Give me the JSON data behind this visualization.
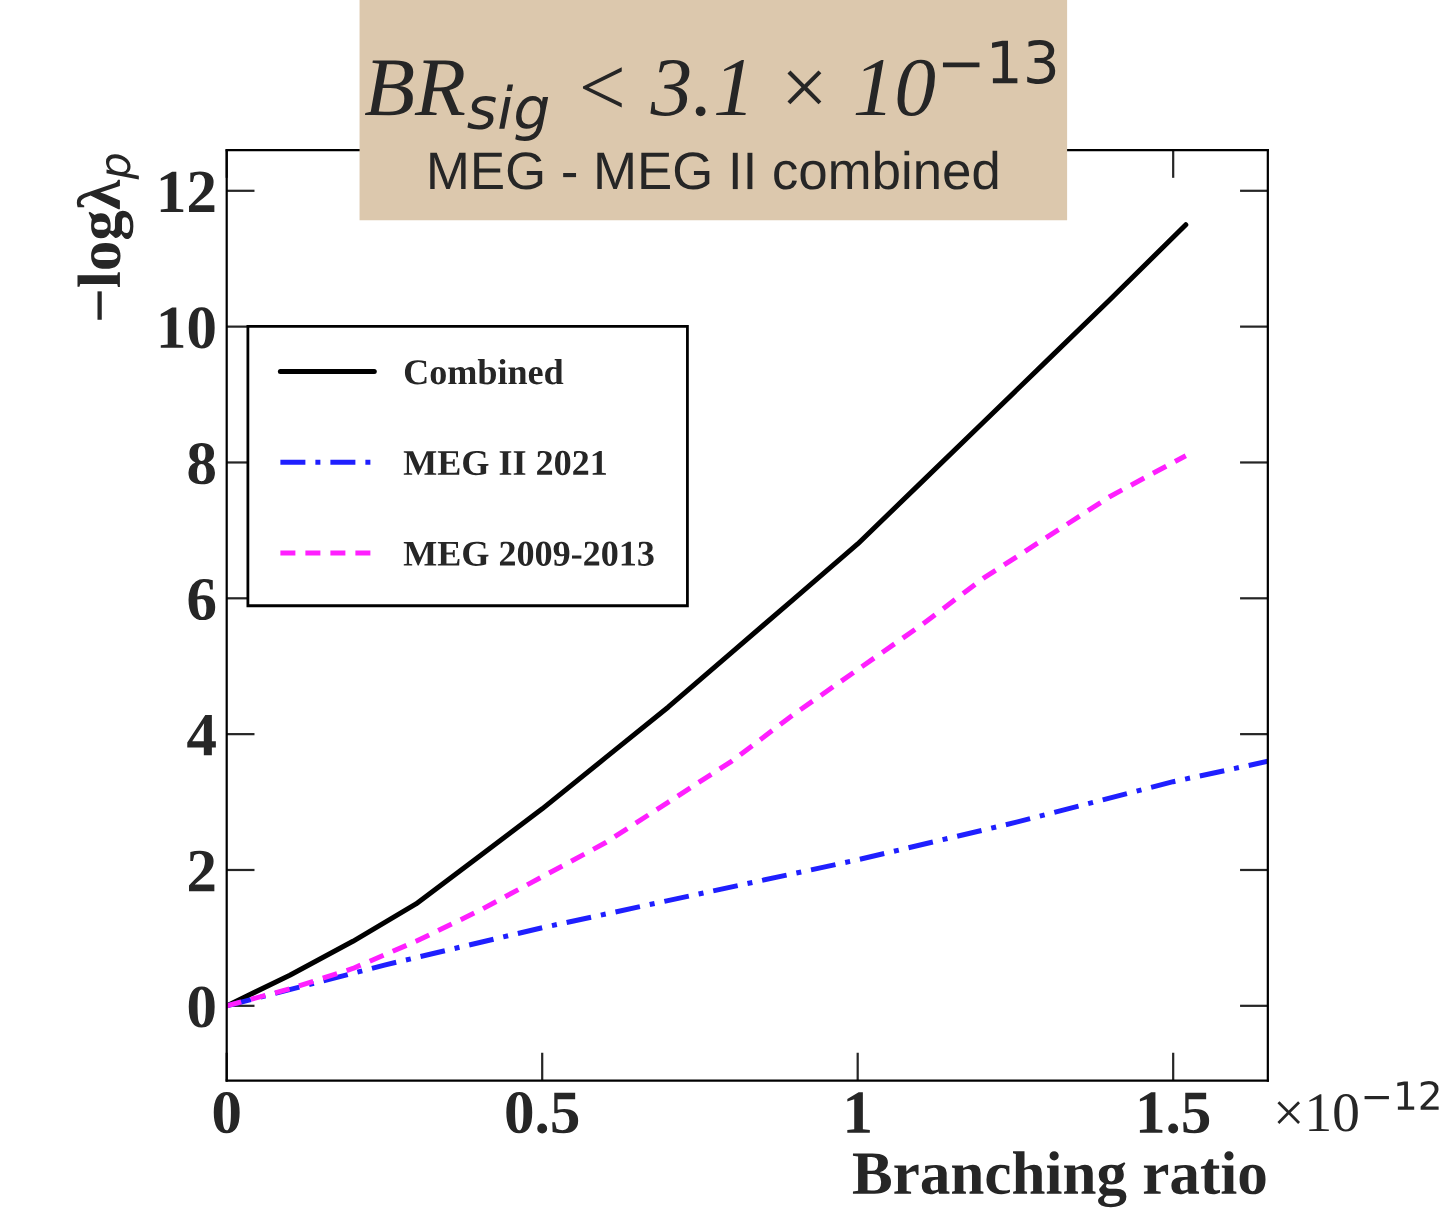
{
  "chart_data": {
    "type": "line",
    "title": "BR$_{sig}$ < 3.1 × 10$^{−13}$",
    "subtitle": "MEG - MEG II combined",
    "xlabel": "Branching ratio",
    "ylabel": "−logλ$_{p}$",
    "annotations": [
      "×10$^{−12}$"
    ],
    "series": [
      {
        "name": "Combined",
        "color": "#000000",
        "line_style": "solid",
        "x": [
          0,
          0.1,
          0.2,
          0.3,
          0.4,
          0.5,
          0.6,
          0.7,
          0.8,
          0.9,
          1.0,
          1.1,
          1.2,
          1.3,
          1.4,
          1.52
        ],
        "values": [
          0,
          0.45,
          0.95,
          1.5,
          2.2,
          2.9,
          3.65,
          4.4,
          5.2,
          6.0,
          6.8,
          7.7,
          8.6,
          9.5,
          10.4,
          11.5
        ]
      },
      {
        "name": "MEG II 2021",
        "color": "#1f1fff",
        "line_style": "dashdot",
        "x": [
          0,
          0.25,
          0.5,
          0.75,
          1.0,
          1.25,
          1.5,
          1.65
        ],
        "values": [
          0,
          0.6,
          1.15,
          1.65,
          2.15,
          2.7,
          3.3,
          3.6
        ]
      },
      {
        "name": "MEG 2009-2013",
        "color": "#ff1fff",
        "line_style": "dashed",
        "x": [
          0,
          0.1,
          0.2,
          0.3,
          0.4,
          0.5,
          0.6,
          0.7,
          0.8,
          0.9,
          1.0,
          1.1,
          1.2,
          1.3,
          1.4,
          1.52
        ],
        "values": [
          0,
          0.25,
          0.55,
          0.95,
          1.4,
          1.9,
          2.4,
          3.0,
          3.6,
          4.3,
          4.95,
          5.6,
          6.3,
          6.9,
          7.5,
          8.1
        ]
      }
    ],
    "xlim": [
      0,
      1.65
    ],
    "xticks": [
      0,
      0.5,
      1,
      1.5
    ],
    "ylim": [
      -1.1,
      12.6
    ],
    "yticks": [
      0,
      2,
      4,
      6,
      8,
      10,
      12
    ],
    "grid": false,
    "legend": "top left"
  }
}
